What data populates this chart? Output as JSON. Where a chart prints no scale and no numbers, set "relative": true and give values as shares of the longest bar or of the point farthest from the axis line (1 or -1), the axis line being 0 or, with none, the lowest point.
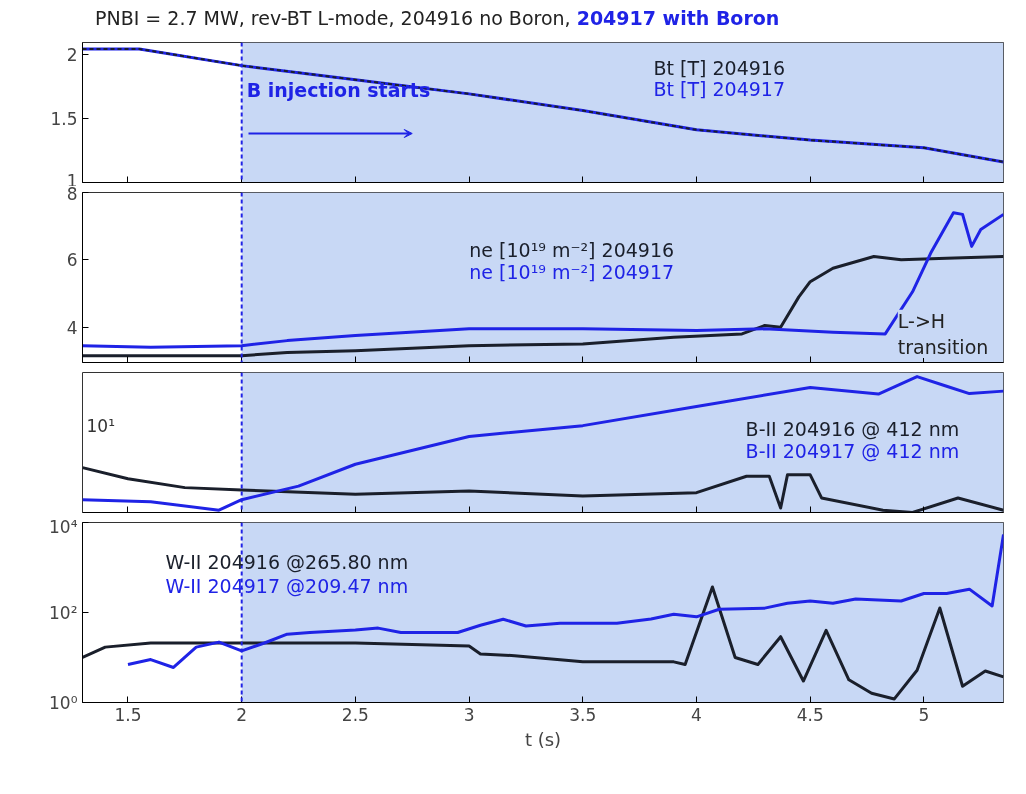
{
  "chart_data": [
    {
      "type": "line",
      "title": "PNBI = 2.7 MW,  rev-BT L-mode, 204916 no Boron,",
      "subtitle": "204917 with Boron",
      "xlim": [
        1.3,
        5.35
      ],
      "xticks": [
        1.5,
        2,
        2.5,
        3,
        3.5,
        4,
        4.5,
        5
      ],
      "ylim": [
        1,
        2.09
      ],
      "yticks": [
        1,
        1.5,
        2
      ],
      "tick_labels": "y",
      "grid": false,
      "legend": false,
      "series": [
        {
          "name": "Bt [T] 204916",
          "color": "#1a1f2b",
          "line_style": "dashed",
          "x": [
            1.3,
            1.55,
            2,
            2.5,
            3,
            3.5,
            4,
            4.5,
            5,
            5.35
          ],
          "values": [
            2.04,
            2.04,
            1.91,
            1.8,
            1.69,
            1.56,
            1.41,
            1.33,
            1.27,
            1.16
          ]
        },
        {
          "name": "Bt [T] 204917",
          "color": "#1f23e6",
          "x": [
            1.3,
            1.55,
            2,
            2.5,
            3,
            3.5,
            4,
            4.5,
            5,
            5.35
          ],
          "values": [
            2.04,
            2.04,
            1.91,
            1.8,
            1.69,
            1.56,
            1.41,
            1.33,
            1.27,
            1.16
          ]
        }
      ],
      "bands": [
        {
          "axis": "x",
          "from": 2,
          "to": 5.35,
          "color": "#c8d8f5"
        }
      ],
      "ref_lines": [
        {
          "axis": "x",
          "value": 2,
          "color": "#1f23e6",
          "line_style": "dashed"
        }
      ],
      "annotations": [
        {
          "text": "B injection starts",
          "x": 2,
          "y": 1.72
        }
      ]
    },
    {
      "type": "line",
      "xlim": [
        1.3,
        5.35
      ],
      "xticks": [
        1.5,
        2,
        2.5,
        3,
        3.5,
        4,
        4.5,
        5
      ],
      "ylim": [
        2.95,
        8
      ],
      "yticks": [
        4,
        6,
        8
      ],
      "tick_labels": "y",
      "grid": false,
      "legend": false,
      "series": [
        {
          "name": "ne [10¹⁹ m⁻²] 204916",
          "color": "#1a1f2b",
          "x": [
            1.3,
            1.6,
            2,
            2.2,
            2.5,
            3,
            3.5,
            3.9,
            4.2,
            4.3,
            4.37,
            4.45,
            4.5,
            4.6,
            4.78,
            4.9,
            5.1,
            5.35
          ],
          "values": [
            3.15,
            3.15,
            3.15,
            3.25,
            3.3,
            3.45,
            3.5,
            3.7,
            3.8,
            4.05,
            4.0,
            4.9,
            5.35,
            5.75,
            6.1,
            6.0,
            6.05,
            6.1
          ]
        },
        {
          "name": "ne [10¹⁹ m⁻²] 204917",
          "color": "#1f23e6",
          "x": [
            1.3,
            1.6,
            2,
            2.2,
            2.5,
            3,
            3.5,
            4,
            4.3,
            4.6,
            4.83,
            4.95,
            5.03,
            5.13,
            5.17,
            5.21,
            5.25,
            5.35
          ],
          "values": [
            3.45,
            3.4,
            3.45,
            3.6,
            3.75,
            3.95,
            3.95,
            3.9,
            3.95,
            3.85,
            3.8,
            5.05,
            6.2,
            7.4,
            7.35,
            6.4,
            6.9,
            7.35
          ]
        }
      ],
      "bands": [
        {
          "axis": "x",
          "from": 2,
          "to": 5.35,
          "color": "#c8d8f5"
        }
      ],
      "ref_lines": [
        {
          "axis": "x",
          "value": 2,
          "color": "#1f23e6",
          "line_style": "dashed"
        }
      ],
      "annotations": [
        {
          "text": "L->H transition",
          "x": 4.85,
          "y": 3.8
        }
      ]
    },
    {
      "type": "line",
      "relative": true,
      "xlim": [
        1.3,
        5.35
      ],
      "xticks": [
        1.5,
        2,
        2.5,
        3,
        3.5,
        4,
        4.5,
        5
      ],
      "tick_labels": false,
      "grid": false,
      "legend": false,
      "annotations": [
        "10¹"
      ],
      "series": [
        {
          "name": "B-II 204916 @ 412 nm",
          "color": "#1a1f2b",
          "x": [
            1.3,
            1.5,
            1.75,
            2,
            2.5,
            3,
            3.5,
            4,
            4.22,
            4.32,
            4.37,
            4.4,
            4.5,
            4.55,
            4.82,
            4.95,
            5.15,
            5.35
          ],
          "values": [
            0.33,
            0.248,
            0.183,
            0.165,
            0.134,
            0.159,
            0.121,
            0.146,
            0.267,
            0.267,
            0.033,
            0.277,
            0.277,
            0.107,
            0.017,
            0,
            0.107,
            0.017
          ]
        },
        {
          "name": "B-II 204917 @ 412 nm",
          "color": "#1f23e6",
          "x": [
            1.3,
            1.6,
            1.9,
            2,
            2.25,
            2.5,
            3,
            3.5,
            4,
            4.5,
            4.8,
            4.97,
            5.1,
            5.2,
            5.35
          ],
          "values": [
            0.094,
            0.079,
            0.017,
            0.094,
            0.194,
            0.355,
            0.559,
            0.639,
            0.78,
            0.92,
            0.871,
            1,
            0.929,
            0.875,
            0.893
          ]
        }
      ],
      "bands": [
        {
          "axis": "x",
          "from": 2,
          "to": 5.35,
          "color": "#c8d8f5"
        }
      ],
      "ref_lines": [
        {
          "axis": "x",
          "value": 2,
          "color": "#1f23e6",
          "line_style": "dashed"
        }
      ]
    },
    {
      "type": "line",
      "log": "y",
      "xlabel": "t (s)",
      "xlim": [
        1.3,
        5.35
      ],
      "xticks": [
        1.5,
        2,
        2.5,
        3,
        3.5,
        4,
        4.5,
        5
      ],
      "ylim": [
        1,
        10000
      ],
      "yticks": [
        {
          "value": 1,
          "label": "10⁰"
        },
        {
          "value": 100,
          "label": "10²"
        },
        {
          "value": 10000,
          "label": "10⁴"
        }
      ],
      "grid": false,
      "legend": false,
      "series": [
        {
          "name": "W-II 204916 @265.80 nm",
          "color": "#1a1f2b",
          "x": [
            1.3,
            1.4,
            1.6,
            2,
            2.5,
            3,
            3.05,
            3.2,
            3.5,
            3.9,
            3.95,
            4.07,
            4.17,
            4.27,
            4.37,
            4.47,
            4.57,
            4.67,
            4.77,
            4.87,
            4.97,
            5.07,
            5.17,
            5.27,
            5.35
          ],
          "values": [
            10,
            17,
            21,
            21,
            21,
            18,
            12,
            11,
            8,
            8,
            7,
            370,
            10,
            7,
            29,
            3,
            40,
            3.2,
            1.6,
            1.2,
            5.2,
            126,
            2.3,
            5,
            3.7
          ]
        },
        {
          "name": "W-II 204917 @209.47 nm",
          "color": "#1f23e6",
          "x": [
            1.5,
            1.6,
            1.7,
            1.8,
            1.9,
            2.0,
            2.1,
            2.2,
            2.3,
            2.5,
            2.6,
            2.7,
            2.95,
            3.05,
            3.15,
            3.25,
            3.4,
            3.65,
            3.8,
            3.9,
            4.0,
            4.1,
            4.3,
            4.4,
            4.5,
            4.6,
            4.7,
            4.9,
            5.0,
            5.1,
            5.2,
            5.3,
            5.35
          ],
          "values": [
            7,
            9,
            6,
            17,
            22,
            14,
            21,
            33,
            36,
            41,
            45,
            36,
            36,
            52,
            71,
            50,
            58,
            58,
            72,
            91,
            80,
            118,
            125,
            160,
            180,
            160,
            200,
            180,
            265,
            265,
            330,
            140,
            5400
          ]
        }
      ],
      "bands": [
        {
          "axis": "x",
          "from": 2,
          "to": 5.35,
          "color": "#c8d8f5"
        }
      ],
      "ref_lines": [
        {
          "axis": "x",
          "value": 2,
          "color": "#1f23e6",
          "line_style": "dashed"
        }
      ]
    }
  ]
}
